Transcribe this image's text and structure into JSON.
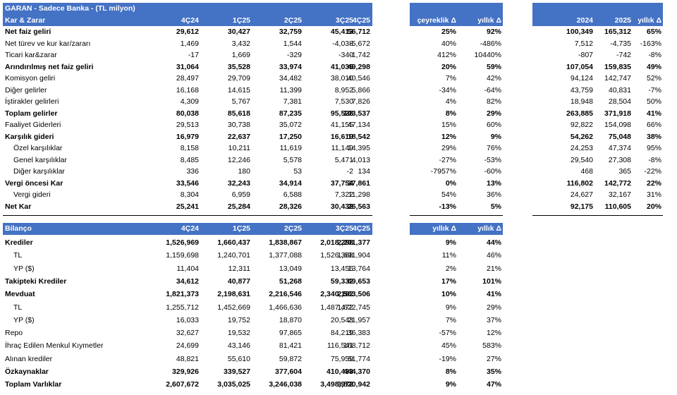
{
  "income": {
    "title": "GARAN - Sadece Banka - (TL milyon)",
    "section": "Kar & Zarar",
    "columns": [
      "4Ç24",
      "1Ç25",
      "2Ç25",
      "3Ç25",
      "4Ç25"
    ],
    "rows": [
      {
        "label": "Net faiz geliri",
        "indent": 0,
        "bold": true,
        "values": [
          "29,612",
          "30,427",
          "32,759",
          "45,413",
          "56,712"
        ]
      },
      {
        "label": "Net türev ve kur kar/zararı",
        "indent": 0,
        "bold": false,
        "values": [
          "1,469",
          "3,432",
          "1,544",
          "-4,038",
          "-5,672"
        ]
      },
      {
        "label": "Ticari kar&zarar",
        "indent": 0,
        "bold": false,
        "values": [
          "-17",
          "1,669",
          "-329",
          "-340",
          "-1,742"
        ]
      },
      {
        "label": "Arındırılmış net faiz geliri",
        "indent": 0,
        "bold": true,
        "values": [
          "31,064",
          "35,528",
          "33,974",
          "41,035",
          "49,298"
        ]
      },
      {
        "label": "Komisyon geliri",
        "indent": 0,
        "bold": false,
        "values": [
          "28,497",
          "29,709",
          "34,482",
          "38,010",
          "40,546"
        ]
      },
      {
        "label": "Diğer gelirler",
        "indent": 0,
        "bold": false,
        "values": [
          "16,168",
          "14,615",
          "11,399",
          "8,952",
          "5,866"
        ]
      },
      {
        "label": "İştirakler gelirleri",
        "indent": 0,
        "bold": false,
        "values": [
          "4,309",
          "5,767",
          "7,381",
          "7,530",
          "7,826"
        ]
      },
      {
        "label": "Toplam gelirler",
        "indent": 0,
        "bold": true,
        "values": [
          "80,038",
          "85,618",
          "87,235",
          "95,528",
          "103,537"
        ]
      },
      {
        "label": "Faaliyet Giderleri",
        "indent": 0,
        "bold": false,
        "values": [
          "29,513",
          "30,738",
          "35,072",
          "41,155",
          "47,134"
        ]
      },
      {
        "label": "Karşılık gideri",
        "indent": 0,
        "bold": true,
        "values": [
          "16,979",
          "22,637",
          "17,250",
          "16,619",
          "18,542"
        ]
      },
      {
        "label": "Özel karşılıklar",
        "indent": 1,
        "bold": false,
        "values": [
          "8,158",
          "10,211",
          "11,619",
          "11,149",
          "14,395"
        ]
      },
      {
        "label": "Genel karşılıklar",
        "indent": 1,
        "bold": false,
        "values": [
          "8,485",
          "12,246",
          "5,578",
          "5,471",
          "4,013"
        ]
      },
      {
        "label": "Diğer karşılıklar",
        "indent": 1,
        "bold": false,
        "values": [
          "336",
          "180",
          "53",
          "-2",
          "134"
        ]
      },
      {
        "label": "Vergi öncesi Kar",
        "indent": 0,
        "bold": true,
        "values": [
          "33,546",
          "32,243",
          "34,914",
          "37,754",
          "37,861"
        ]
      },
      {
        "label": "Vergi gideri",
        "indent": 1,
        "bold": false,
        "values": [
          "8,304",
          "6,959",
          "6,588",
          "7,322",
          "11,298"
        ]
      },
      {
        "label": "Net Kar",
        "indent": 0,
        "bold": true,
        "values": [
          "25,241",
          "25,284",
          "28,326",
          "30,432",
          "26,563"
        ]
      }
    ]
  },
  "income_change": {
    "columns": [
      "çeyreklik Δ",
      "yıllık Δ"
    ],
    "rows": [
      [
        "25%",
        "92%"
      ],
      [
        "40%",
        "-486%"
      ],
      [
        "412%",
        "10440%"
      ],
      [
        "20%",
        "59%"
      ],
      [
        "7%",
        "42%"
      ],
      [
        "-34%",
        "-64%"
      ],
      [
        "4%",
        "82%"
      ],
      [
        "8%",
        "29%"
      ],
      [
        "15%",
        "60%"
      ],
      [
        "12%",
        "9%"
      ],
      [
        "29%",
        "76%"
      ],
      [
        "-27%",
        "-53%"
      ],
      [
        "-7957%",
        "-60%"
      ],
      [
        "0%",
        "13%"
      ],
      [
        "54%",
        "36%"
      ],
      [
        "-13%",
        "5%"
      ]
    ]
  },
  "income_annual": {
    "columns": [
      "2024",
      "2025",
      "yıllık Δ"
    ],
    "rows": [
      [
        "100,349",
        "165,312",
        "65%"
      ],
      [
        "7,512",
        "-4,735",
        "-163%"
      ],
      [
        "-807",
        "-742",
        "-8%"
      ],
      [
        "107,054",
        "159,835",
        "49%"
      ],
      [
        "94,124",
        "142,747",
        "52%"
      ],
      [
        "43,759",
        "40,831",
        "-7%"
      ],
      [
        "18,948",
        "28,504",
        "50%"
      ],
      [
        "263,885",
        "371,918",
        "41%"
      ],
      [
        "92,822",
        "154,098",
        "66%"
      ],
      [
        "54,262",
        "75,048",
        "38%"
      ],
      [
        "24,253",
        "47,374",
        "95%"
      ],
      [
        "29,540",
        "27,308",
        "-8%"
      ],
      [
        "468",
        "365",
        "-22%"
      ],
      [
        "116,802",
        "142,772",
        "22%"
      ],
      [
        "24,627",
        "32,167",
        "31%"
      ],
      [
        "92,175",
        "110,605",
        "20%"
      ]
    ]
  },
  "balance": {
    "section": "Bilanço",
    "columns": [
      "4Ç24",
      "1Ç25",
      "2Ç25",
      "3Ç25",
      "4Ç25"
    ],
    "rows": [
      {
        "label": "Krediler",
        "indent": 0,
        "bold": true,
        "values": [
          "1,526,969",
          "1,660,437",
          "1,838,867",
          "2,018,298",
          "2,201,377"
        ]
      },
      {
        "label": "TL",
        "indent": 1,
        "bold": false,
        "values": [
          "1,159,698",
          "1,240,701",
          "1,377,088",
          "1,526,368",
          "1,691,904"
        ]
      },
      {
        "label": "YP ($)",
        "indent": 1,
        "bold": false,
        "values": [
          "11,404",
          "12,311",
          "13,049",
          "13,456",
          "13,764"
        ]
      },
      {
        "label": "Takipteki Krediler",
        "indent": 0,
        "bold": true,
        "values": [
          "34,612",
          "40,877",
          "51,268",
          "59,332",
          "69,653"
        ]
      },
      {
        "label": "Mevduat",
        "indent": 0,
        "bold": true,
        "values": [
          "1,821,373",
          "2,198,631",
          "2,216,546",
          "2,340,162",
          "2,563,506"
        ]
      },
      {
        "label": "TL",
        "indent": 1,
        "bold": false,
        "values": [
          "1,255,712",
          "1,452,669",
          "1,466,636",
          "1,487,472",
          "1,622,745"
        ]
      },
      {
        "label": "YP ($)",
        "indent": 1,
        "bold": false,
        "values": [
          "16,033",
          "19,752",
          "18,870",
          "20,543",
          "21,957"
        ]
      },
      {
        "label": "Repo",
        "indent": 0,
        "bold": false,
        "values": [
          "32,627",
          "19,532",
          "97,865",
          "84,219",
          "36,383"
        ]
      },
      {
        "label": "İhraç Edilen Menkul Kıymetler",
        "indent": 0,
        "bold": false,
        "values": [
          "24,699",
          "43,146",
          "81,421",
          "116,541",
          "168,712"
        ]
      },
      {
        "label": "Alınan krediler",
        "indent": 0,
        "bold": false,
        "values": [
          "48,821",
          "55,610",
          "59,872",
          "75,959",
          "61,774"
        ]
      },
      {
        "label": "Özkaynaklar",
        "indent": 0,
        "bold": true,
        "values": [
          "329,926",
          "339,527",
          "377,604",
          "410,433",
          "444,370"
        ]
      },
      {
        "label": "Toplam Varlıklar",
        "indent": 0,
        "bold": true,
        "values": [
          "2,607,672",
          "3,035,025",
          "3,246,038",
          "3,498,972",
          "3,820,942"
        ]
      }
    ]
  },
  "balance_change": {
    "columns": [
      "yıllık Δ",
      "yıllık Δ"
    ],
    "rows": [
      [
        "9%",
        "44%"
      ],
      [
        "11%",
        "46%"
      ],
      [
        "2%",
        "21%"
      ],
      [
        "17%",
        "101%"
      ],
      [
        "10%",
        "41%"
      ],
      [
        "9%",
        "29%"
      ],
      [
        "7%",
        "37%"
      ],
      [
        "-57%",
        "12%"
      ],
      [
        "45%",
        "583%"
      ],
      [
        "-19%",
        "27%"
      ],
      [
        "8%",
        "35%"
      ],
      [
        "9%",
        "47%"
      ]
    ]
  }
}
